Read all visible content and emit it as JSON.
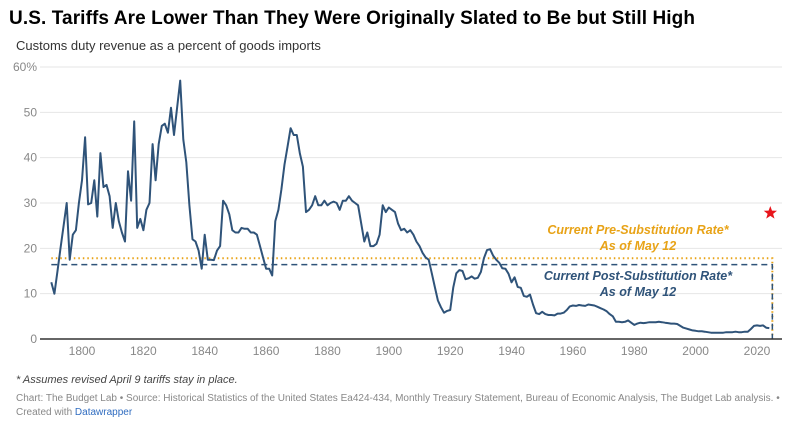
{
  "title": "U.S. Tariffs Are Lower Than They Were Originally Slated to Be but Still High",
  "subtitle": "Customs duty revenue as a percent of goods imports",
  "footnote": "* Assumes revised April 9 tariffs stay in place.",
  "source": "Chart: The Budget Lab • Source: Historical Statistics of the United States Ea424-434, Monthly Treasury Statement, Bureau of Economic Analysis, The Budget Lab analysis. •",
  "created_with_prefix": "Created with ",
  "created_with_link": "Datawrapper",
  "colors": {
    "line": "#2f5379",
    "pre_substitution": "#e8a317",
    "post_substitution": "#2f5379",
    "star": "#e8141b",
    "grid": "#e6e6e6",
    "axis": "#333333",
    "link": "#2f6cc0"
  },
  "chart_data": {
    "type": "line",
    "title": "U.S. Tariffs Are Lower Than They Were Originally Slated to Be but Still High",
    "subtitle": "Customs duty revenue as a percent of goods imports",
    "xlabel": "",
    "ylabel": "",
    "xlim": [
      1786,
      2028
    ],
    "ylim": [
      0,
      60
    ],
    "grid": true,
    "x_ticks": [
      1800,
      1820,
      1840,
      1860,
      1880,
      1900,
      1920,
      1940,
      1960,
      1980,
      2000,
      2020
    ],
    "y_ticks": [
      0,
      10,
      20,
      30,
      40,
      50,
      60
    ],
    "y_tick_labels": [
      "0",
      "10",
      "20",
      "30",
      "40",
      "50",
      "60%"
    ],
    "series": [
      {
        "name": "Customs duty revenue as a percent of goods imports",
        "x": [
          1790,
          1791,
          1792,
          1793,
          1794,
          1795,
          1796,
          1797,
          1798,
          1799,
          1800,
          1801,
          1802,
          1803,
          1804,
          1805,
          1806,
          1807,
          1808,
          1809,
          1810,
          1811,
          1812,
          1813,
          1814,
          1815,
          1816,
          1817,
          1818,
          1819,
          1820,
          1821,
          1822,
          1823,
          1824,
          1825,
          1826,
          1827,
          1828,
          1829,
          1830,
          1831,
          1832,
          1833,
          1834,
          1835,
          1836,
          1837,
          1838,
          1839,
          1840,
          1841,
          1842,
          1843,
          1844,
          1845,
          1846,
          1847,
          1848,
          1849,
          1850,
          1851,
          1852,
          1853,
          1854,
          1855,
          1856,
          1857,
          1858,
          1859,
          1860,
          1861,
          1862,
          1863,
          1864,
          1865,
          1866,
          1867,
          1868,
          1869,
          1870,
          1871,
          1872,
          1873,
          1874,
          1875,
          1876,
          1877,
          1878,
          1879,
          1880,
          1881,
          1882,
          1883,
          1884,
          1885,
          1886,
          1887,
          1888,
          1889,
          1890,
          1891,
          1892,
          1893,
          1894,
          1895,
          1896,
          1897,
          1898,
          1899,
          1900,
          1901,
          1902,
          1903,
          1904,
          1905,
          1906,
          1907,
          1908,
          1909,
          1910,
          1911,
          1912,
          1913,
          1914,
          1915,
          1916,
          1917,
          1918,
          1919,
          1920,
          1921,
          1922,
          1923,
          1924,
          1925,
          1926,
          1927,
          1928,
          1929,
          1930,
          1931,
          1932,
          1933,
          1934,
          1935,
          1936,
          1937,
          1938,
          1939,
          1940,
          1941,
          1942,
          1943,
          1944,
          1945,
          1946,
          1947,
          1948,
          1949,
          1950,
          1951,
          1952,
          1953,
          1954,
          1955,
          1956,
          1957,
          1958,
          1959,
          1960,
          1961,
          1962,
          1963,
          1964,
          1965,
          1966,
          1967,
          1968,
          1969,
          1970,
          1971,
          1972,
          1973,
          1974,
          1975,
          1976,
          1977,
          1978,
          1979,
          1980,
          1981,
          1982,
          1983,
          1984,
          1985,
          1986,
          1987,
          1988,
          1989,
          1990,
          1991,
          1992,
          1993,
          1994,
          1995,
          1996,
          1997,
          1998,
          1999,
          2000,
          2001,
          2002,
          2003,
          2004,
          2005,
          2006,
          2007,
          2008,
          2009,
          2010,
          2011,
          2012,
          2013,
          2014,
          2015,
          2016,
          2017,
          2018,
          2019,
          2020,
          2021,
          2022,
          2023,
          2024
        ],
        "values": [
          12.5,
          10,
          15,
          20,
          25,
          30,
          17.5,
          23,
          24,
          30,
          35,
          44.5,
          29.7,
          30,
          35,
          27,
          41,
          33.5,
          34,
          31.5,
          24.5,
          30,
          26,
          23.5,
          21.5,
          37,
          30.5,
          48,
          24.5,
          26.5,
          24,
          28.5,
          30,
          43,
          35,
          43,
          47,
          47.5,
          45.5,
          51,
          45,
          51,
          57,
          44,
          39,
          29.5,
          22,
          21.5,
          19.5,
          15.5,
          23,
          17.5,
          17.5,
          17.4,
          19.5,
          20.5,
          30.5,
          29.5,
          27.5,
          24,
          23.5,
          23.5,
          24.5,
          24.3,
          24.3,
          23.5,
          23.5,
          23,
          20.5,
          18,
          15.5,
          15.5,
          14,
          26,
          28.5,
          33,
          38.5,
          42.5,
          46.5,
          45,
          45,
          41,
          38,
          28,
          28.5,
          29.5,
          31.5,
          29.5,
          29.5,
          30.5,
          29.5,
          30,
          30.3,
          30,
          28.5,
          30.5,
          30.5,
          31.5,
          30.5,
          30,
          29.5,
          25.5,
          21.5,
          23.5,
          20.5,
          20.5,
          21,
          23,
          29.5,
          28,
          29,
          28.5,
          28,
          25.5,
          24,
          24.3,
          23.5,
          24,
          23,
          21.5,
          20.5,
          19,
          18,
          17.5,
          14.5,
          11.5,
          8.5,
          7,
          5.8,
          6.2,
          6.4,
          11.4,
          14.5,
          15.2,
          15,
          13.2,
          13.4,
          13.8,
          13.3,
          13.5,
          14.8,
          17.8,
          19.6,
          19.8,
          18.4,
          17.5,
          16.8,
          15.6,
          15.5,
          14.4,
          12.5,
          13.6,
          11.5,
          11.3,
          9.5,
          9.3,
          9.8,
          7.6,
          5.7,
          5.5,
          6,
          5.5,
          5.3,
          5.3,
          5.2,
          5.6,
          5.6,
          5.8,
          6.4,
          7.2,
          7.4,
          7.3,
          7.5,
          7.4,
          7.3,
          7.6,
          7.5,
          7.4,
          7.1,
          6.8,
          6.5,
          6.1,
          5.5,
          5,
          3.8,
          3.8,
          3.7,
          3.8,
          4.1,
          3.6,
          3.1,
          3.4,
          3.6,
          3.5,
          3.6,
          3.7,
          3.7,
          3.7,
          3.8,
          3.7,
          3.6,
          3.5,
          3.4,
          3.4,
          3.3,
          2.9,
          2.5,
          2.3,
          2.1,
          1.9,
          1.8,
          1.7,
          1.7,
          1.6,
          1.5,
          1.4,
          1.4,
          1.4,
          1.4,
          1.4,
          1.5,
          1.5,
          1.5,
          1.6,
          1.5,
          1.5,
          1.6,
          1.6,
          2.2,
          2.9,
          3.0,
          2.9,
          3.0,
          2.5,
          2.4
        ]
      }
    ],
    "reference_lines": [
      {
        "name": "Current Pre-Substitution Rate",
        "value": 17.8,
        "style": "dotted",
        "x_range": [
          1790,
          2025
        ],
        "label_line1": "Current Pre-Substitution Rate*",
        "label_line2": "As of May 12"
      },
      {
        "name": "Current Post-Substitution Rate",
        "value": 16.4,
        "style": "dashed",
        "x_range": [
          1790,
          2025
        ],
        "label_line1": "Current Post-Substitution Rate*",
        "label_line2": "As of May 12"
      }
    ],
    "markers": [
      {
        "name": "star",
        "x": 2025,
        "value": 27.8
      }
    ]
  }
}
